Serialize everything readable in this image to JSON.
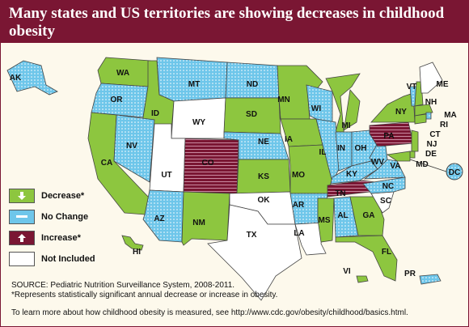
{
  "title": "Many states and US territories are showing decreases in childhood obesity",
  "colors": {
    "banner": "#7a1633",
    "decrease": "#8dc63f",
    "no_change": "#6ec6ea",
    "increase": "#7a1633",
    "not_included": "#ffffff"
  },
  "legend": [
    {
      "key": "decrease",
      "label": "Decrease*",
      "icon": "arrow-down-icon"
    },
    {
      "key": "no_change",
      "label": "No Change",
      "icon": "dash-icon"
    },
    {
      "key": "increase",
      "label": "Increase*",
      "icon": "arrow-up-icon"
    },
    {
      "key": "not_included",
      "label": "Not Included",
      "icon": ""
    }
  ],
  "states": {
    "AK": "no_change",
    "HI": "decrease",
    "WA": "decrease",
    "OR": "no_change",
    "CA": "decrease",
    "ID": "decrease",
    "NV": "no_change",
    "MT": "no_change",
    "WY": "not_included",
    "UT": "not_included",
    "AZ": "no_change",
    "CO": "increase",
    "NM": "decrease",
    "ND": "no_change",
    "SD": "decrease",
    "NE": "no_change",
    "KS": "decrease",
    "OK": "not_included",
    "TX": "not_included",
    "MN": "decrease",
    "IA": "decrease",
    "MO": "decrease",
    "AR": "no_change",
    "LA": "not_included",
    "WI": "no_change",
    "IL": "no_change",
    "MI": "decrease",
    "IN": "no_change",
    "OH": "no_change",
    "KY": "no_change",
    "TN": "increase",
    "MS": "decrease",
    "AL": "no_change",
    "GA": "decrease",
    "FL": "decrease",
    "SC": "not_included",
    "NC": "no_change",
    "VA": "no_change",
    "WV": "no_change",
    "PA": "increase",
    "NY": "decrease",
    "ME": "not_included",
    "VT": "no_change",
    "NH": "decrease",
    "MA": "decrease",
    "RI": "no_change",
    "CT": "decrease",
    "NJ": "decrease",
    "DE": "decrease",
    "MD": "decrease",
    "DC": "no_change",
    "VI": "decrease",
    "PR": "no_change"
  },
  "source": "SOURCE: Pediatric Nutrition Surveillance System, 2008-2011.",
  "footnote": "*Represents statistically significant annual decrease or increase in obesity.",
  "learn_more": "To learn more about how childhood obesity is measured, see http://www.cdc.gov/obesity/childhood/basics.html."
}
